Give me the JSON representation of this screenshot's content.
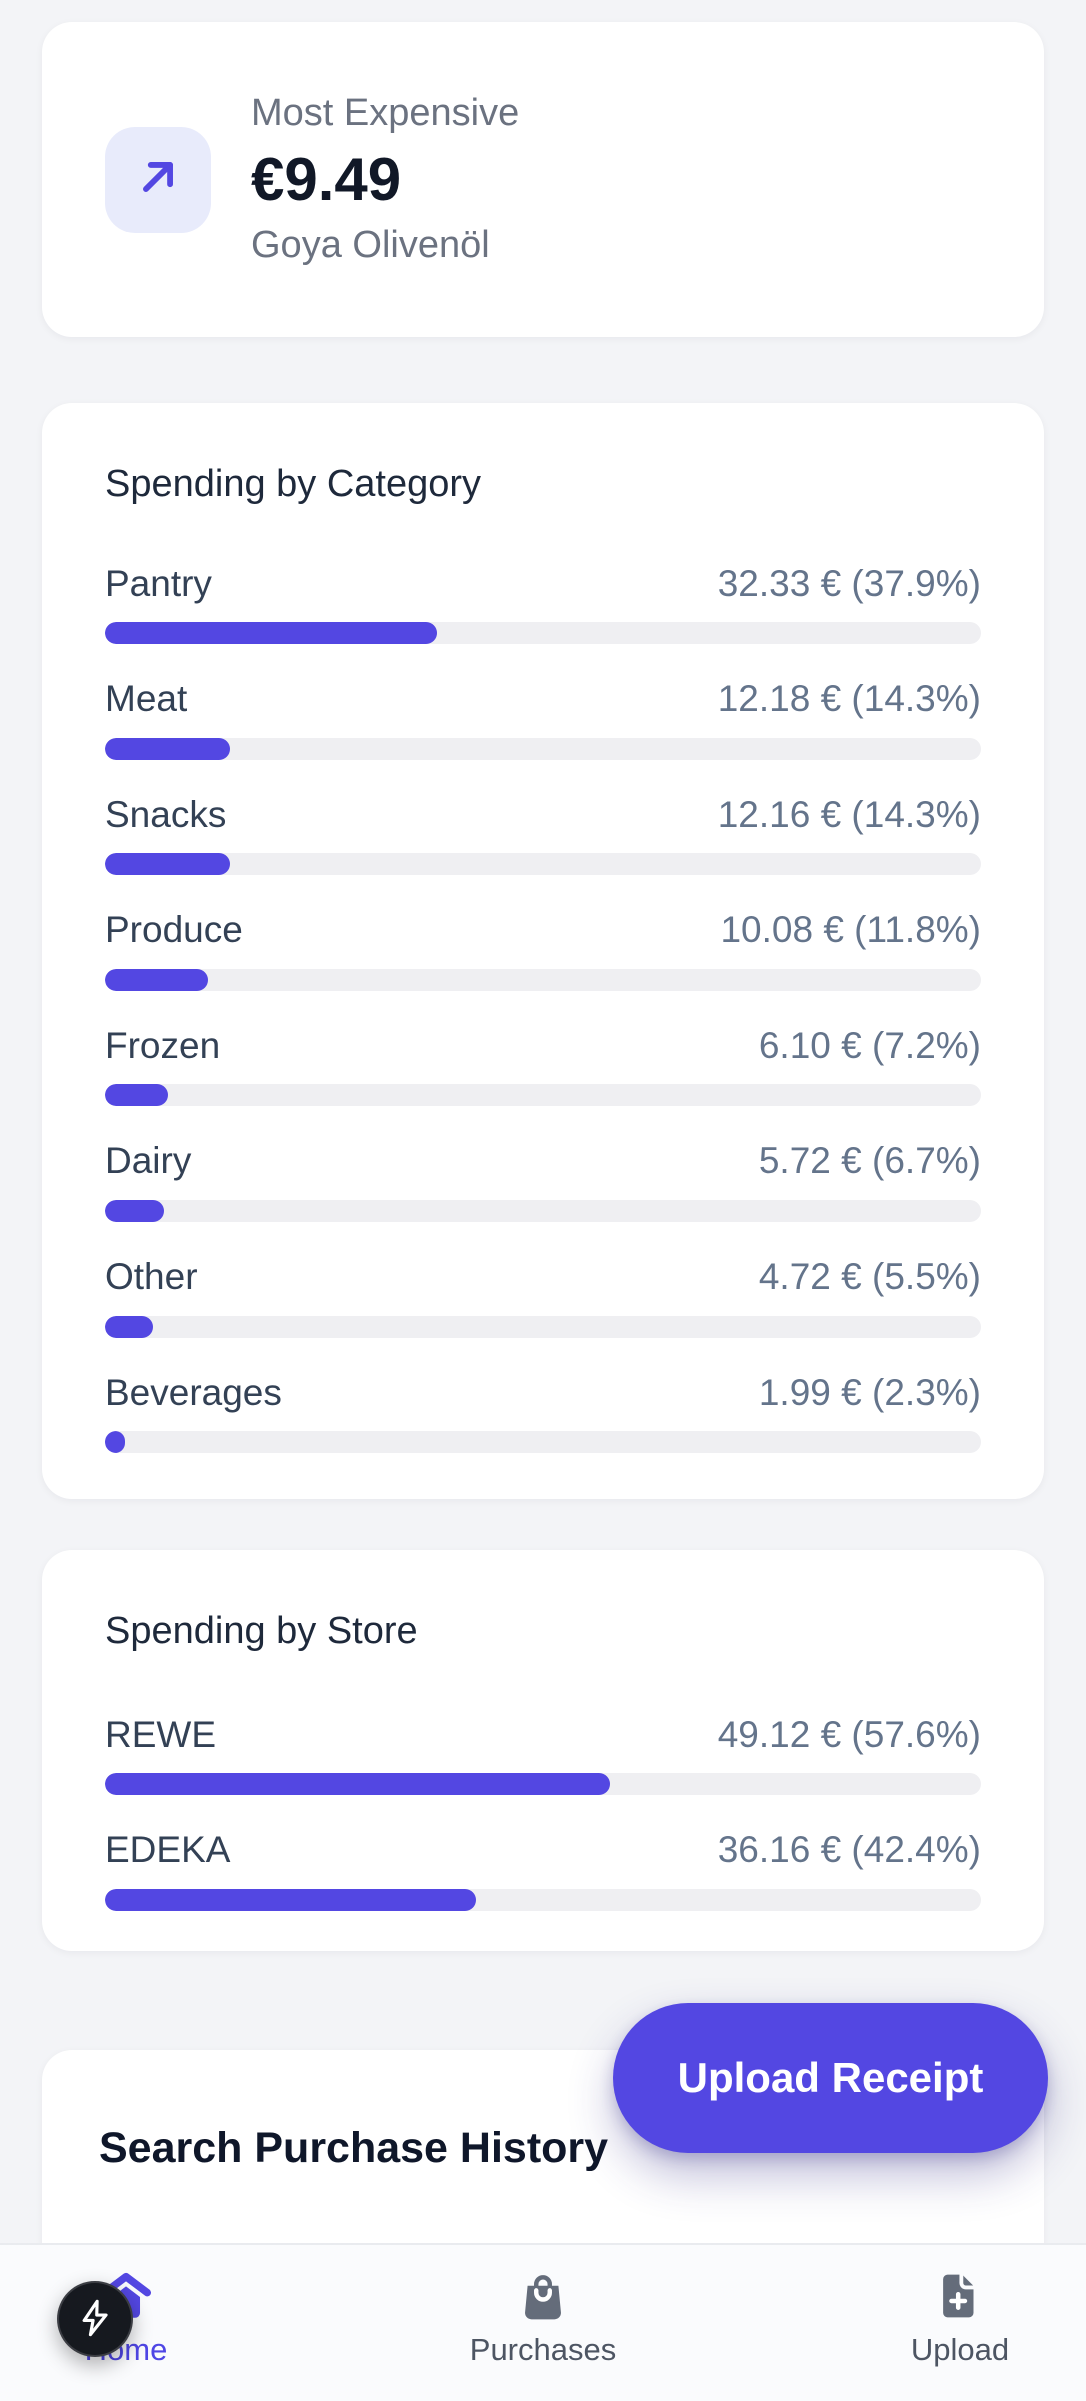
{
  "colors": {
    "accent": "#5347e2",
    "accent_light_bg": "#e8ebfb",
    "page_bg": "#f3f4f7",
    "card_bg": "#ffffff",
    "track_bg": "#efeff2",
    "label_dark": "#334155",
    "value_gray": "#64748b",
    "heading_dark": "#0f172a",
    "nav_inactive": "#4d5563",
    "devtools_bg": "#16191f"
  },
  "summary_card": {
    "icon": "arrow-up-right-icon",
    "label": "Most Expensive",
    "value": "€9.49",
    "subtitle": "Goya Olivenöl"
  },
  "category_card": {
    "title": "Spending by Category",
    "rows": [
      {
        "label": "Pantry",
        "value": "32.33 € (37.9%)",
        "amount_eur": 32.33,
        "pct": 37.9
      },
      {
        "label": "Meat",
        "value": "12.18 € (14.3%)",
        "amount_eur": 12.18,
        "pct": 14.3
      },
      {
        "label": "Snacks",
        "value": "12.16 € (14.3%)",
        "amount_eur": 12.16,
        "pct": 14.3
      },
      {
        "label": "Produce",
        "value": "10.08 € (11.8%)",
        "amount_eur": 10.08,
        "pct": 11.8
      },
      {
        "label": "Frozen",
        "value": "6.10 € (7.2%)",
        "amount_eur": 6.1,
        "pct": 7.2
      },
      {
        "label": "Dairy",
        "value": "5.72 € (6.7%)",
        "amount_eur": 5.72,
        "pct": 6.7
      },
      {
        "label": "Other",
        "value": "4.72 € (5.5%)",
        "amount_eur": 4.72,
        "pct": 5.5
      },
      {
        "label": "Beverages",
        "value": "1.99 € (2.3%)",
        "amount_eur": 1.99,
        "pct": 2.3
      }
    ]
  },
  "store_card": {
    "title": "Spending by Store",
    "rows": [
      {
        "label": "REWE",
        "value": "49.12 € (57.6%)",
        "amount_eur": 49.12,
        "pct": 57.6
      },
      {
        "label": "EDEKA",
        "value": "36.16 € (42.4%)",
        "amount_eur": 36.16,
        "pct": 42.4
      }
    ]
  },
  "upload_button": {
    "label": "Upload Receipt"
  },
  "search_section": {
    "title": "Search Purchase History"
  },
  "bottom_nav": {
    "items": [
      {
        "label": "Home",
        "icon": "home-icon",
        "active": true
      },
      {
        "label": "Purchases",
        "icon": "shopping-bag-icon",
        "active": false
      },
      {
        "label": "Upload",
        "icon": "file-plus-icon",
        "active": false
      }
    ]
  },
  "devtools_button": {
    "icon": "lightning-bolt-icon"
  }
}
